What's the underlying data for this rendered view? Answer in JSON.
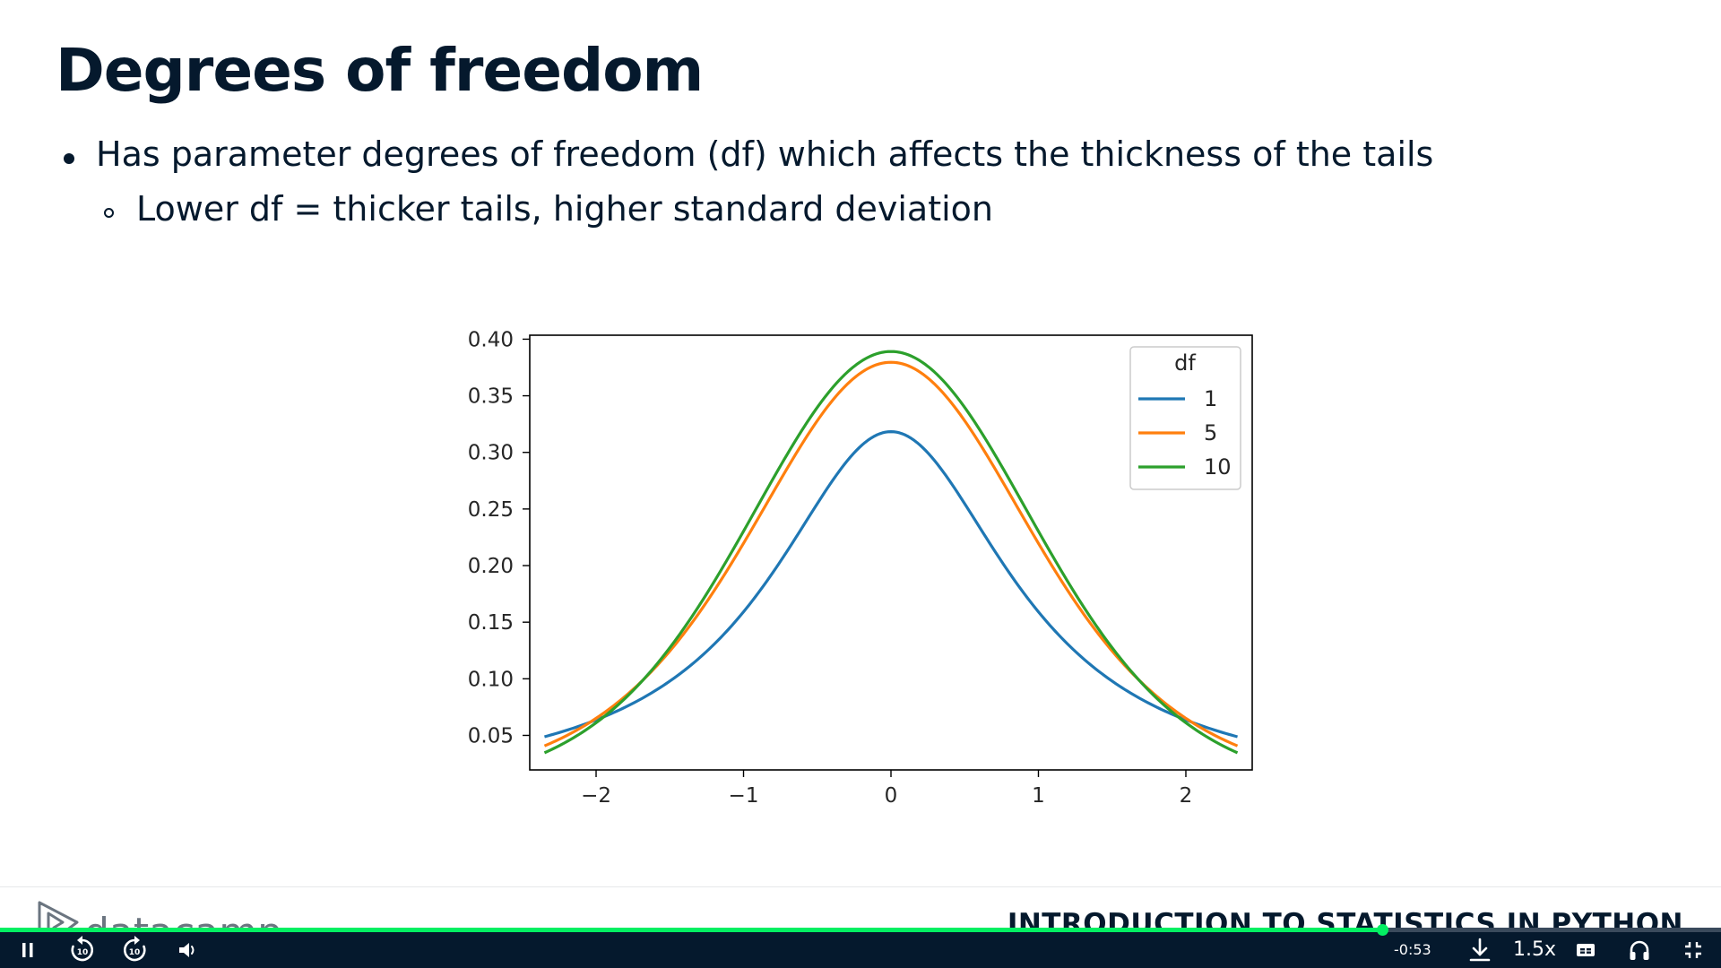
{
  "slide": {
    "title": "Degrees of freedom",
    "bullets": [
      "Has parameter degrees of freedom (df) which affects the thickness of the tails",
      "Lower df = thicker tails, higher standard deviation"
    ]
  },
  "chart_data": {
    "type": "line",
    "title": "",
    "xlabel": "",
    "ylabel": "",
    "xlim": [
      -2.45,
      2.45
    ],
    "ylim": [
      0.0195,
      0.4035
    ],
    "x_range": [
      -2.35,
      2.35
    ],
    "xticks": [
      -2,
      -1,
      0,
      1,
      2
    ],
    "xtick_labels": [
      "−2",
      "−1",
      "0",
      "1",
      "2"
    ],
    "yticks": [
      0.05,
      0.1,
      0.15,
      0.2,
      0.25,
      0.3,
      0.35,
      0.4
    ],
    "ytick_labels": [
      "0.05",
      "0.10",
      "0.15",
      "0.20",
      "0.25",
      "0.30",
      "0.35",
      "0.40"
    ],
    "grid": false,
    "legend": {
      "title": "df",
      "position": "top-right"
    },
    "series": [
      {
        "name": "1",
        "df": 1,
        "color": "#1f77b4"
      },
      {
        "name": "5",
        "df": 5,
        "color": "#ff7f0e"
      },
      {
        "name": "10",
        "df": 10,
        "color": "#2ca02c"
      }
    ]
  },
  "footer": {
    "brand": "datacamp",
    "course_title": "INTRODUCTION TO STATISTICS IN PYTHON"
  },
  "player": {
    "progress": 0.803,
    "time_remaining": "-0:53",
    "speed": "1.5x",
    "icons": [
      "pause-icon",
      "rewind-10-icon",
      "forward-10-icon",
      "volume-icon",
      "download-icon",
      "captions-icon",
      "headphones-icon",
      "exit-fullscreen-icon"
    ],
    "colors": {
      "bar": "#05192d",
      "progress": "#03ef62"
    }
  }
}
